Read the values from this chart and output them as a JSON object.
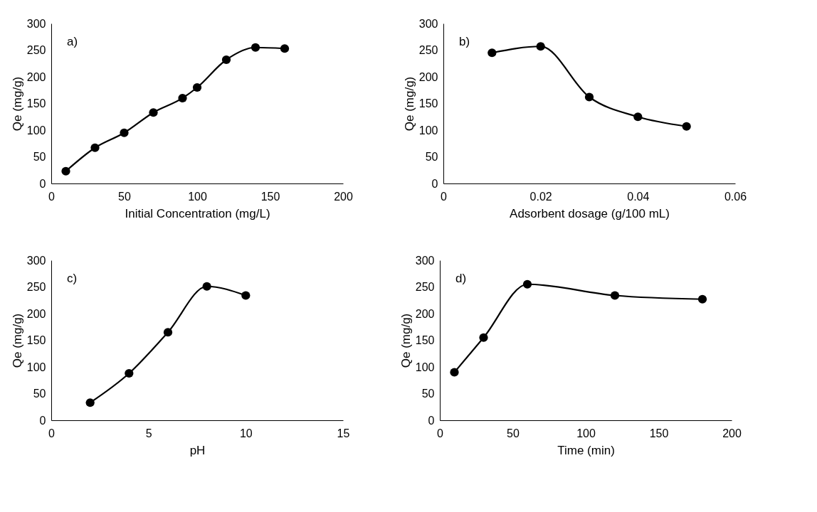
{
  "chart_data": [
    {
      "type": "line",
      "annotations": [
        "a)"
      ],
      "xlabel": "Initial Concentration (mg/L)",
      "ylabel": "Qe (mg/g)",
      "x": [
        10,
        30,
        50,
        70,
        90,
        100,
        120,
        140,
        160
      ],
      "values": [
        23,
        67,
        95,
        133,
        160,
        180,
        232,
        255,
        253
      ],
      "color": "#000000",
      "marker": "circle",
      "line_style": "solid",
      "xlim": [
        0,
        200
      ],
      "xticks": [
        0,
        50,
        100,
        150,
        200
      ],
      "ylim": [
        0,
        300
      ],
      "yticks": [
        0,
        50,
        100,
        150,
        200,
        250,
        300
      ],
      "grid": false
    },
    {
      "type": "line",
      "annotations": [
        "b)"
      ],
      "xlabel": "Adsorbent dosage (g/100 mL)",
      "ylabel": "Qe (mg/g)",
      "x": [
        0.01,
        0.02,
        0.03,
        0.04,
        0.05
      ],
      "values": [
        245,
        257,
        162,
        125,
        107
      ],
      "color": "#000000",
      "marker": "circle",
      "line_style": "solid",
      "xlim": [
        0,
        0.06
      ],
      "xticks": [
        0,
        0.02,
        0.04,
        0.06
      ],
      "ylim": [
        0,
        300
      ],
      "yticks": [
        0,
        50,
        100,
        150,
        200,
        250,
        300
      ],
      "grid": false
    },
    {
      "type": "line",
      "annotations": [
        "c)"
      ],
      "xlabel": "pH",
      "ylabel": "Qe (mg/g)",
      "x": [
        2,
        4,
        6,
        8,
        10
      ],
      "values": [
        33,
        88,
        165,
        251,
        234
      ],
      "color": "#000000",
      "marker": "circle",
      "line_style": "solid",
      "xlim": [
        0,
        15
      ],
      "xticks": [
        0,
        5,
        10,
        15
      ],
      "ylim": [
        0,
        300
      ],
      "yticks": [
        0,
        50,
        100,
        150,
        200,
        250,
        300
      ],
      "grid": false
    },
    {
      "type": "line",
      "annotations": [
        "d)"
      ],
      "xlabel": "Time (min)",
      "ylabel": "Qe (mg/g)",
      "x": [
        10,
        30,
        60,
        120,
        180
      ],
      "values": [
        90,
        155,
        255,
        234,
        227
      ],
      "color": "#000000",
      "marker": "circle",
      "line_style": "solid",
      "xlim": [
        0,
        200
      ],
      "xticks": [
        0,
        50,
        100,
        150,
        200
      ],
      "ylim": [
        0,
        300
      ],
      "yticks": [
        0,
        50,
        100,
        150,
        200,
        250,
        300
      ],
      "grid": false
    }
  ]
}
